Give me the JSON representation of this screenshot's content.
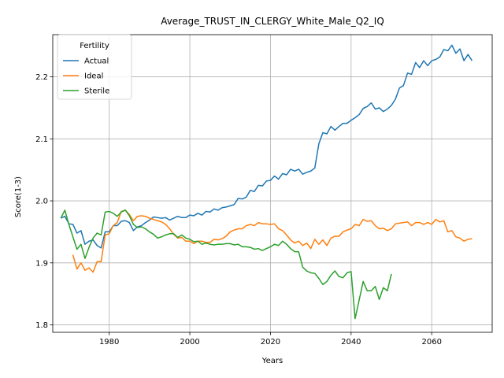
{
  "chart_data": {
    "type": "line",
    "title": "Average_TRUST_IN_CLERGY_White_Male_Q2_IQ",
    "xlabel": "Years",
    "ylabel": "Score(1-3)",
    "xlim": [
      1966,
      2075
    ],
    "ylim": [
      1.788,
      2.268
    ],
    "xticks": [
      1980,
      2000,
      2020,
      2040,
      2060
    ],
    "yticks": [
      1.8,
      1.9,
      2.0,
      2.1,
      2.2
    ],
    "grid": true,
    "legend": {
      "title": "Fertility",
      "placement": "upper-left"
    },
    "series": [
      {
        "name": "Actual",
        "color": "#1f77b4",
        "points": [
          [
            1968,
            1.972
          ],
          [
            1969,
            1.975
          ],
          [
            1970,
            1.963
          ],
          [
            1971,
            1.962
          ],
          [
            1972,
            1.948
          ],
          [
            1973,
            1.952
          ],
          [
            1974,
            1.93
          ],
          [
            1975,
            1.935
          ],
          [
            1976,
            1.937
          ],
          [
            1977,
            1.928
          ],
          [
            1978,
            1.924
          ],
          [
            1979,
            1.95
          ],
          [
            1980,
            1.95
          ],
          [
            1981,
            1.96
          ],
          [
            1982,
            1.96
          ],
          [
            1983,
            1.967
          ],
          [
            1984,
            1.968
          ],
          [
            1985,
            1.965
          ],
          [
            1986,
            1.952
          ],
          [
            1987,
            1.958
          ],
          [
            1988,
            1.96
          ],
          [
            1989,
            1.965
          ],
          [
            1990,
            1.969
          ],
          [
            1991,
            1.974
          ],
          [
            1992,
            1.973
          ],
          [
            1993,
            1.972
          ],
          [
            1994,
            1.973
          ],
          [
            1995,
            1.969
          ],
          [
            1996,
            1.972
          ],
          [
            1997,
            1.975
          ],
          [
            1998,
            1.973
          ],
          [
            1999,
            1.973
          ],
          [
            2000,
            1.977
          ],
          [
            2001,
            1.976
          ],
          [
            2002,
            1.98
          ],
          [
            2003,
            1.977
          ],
          [
            2004,
            1.983
          ],
          [
            2005,
            1.982
          ],
          [
            2006,
            1.987
          ],
          [
            2007,
            1.985
          ],
          [
            2008,
            1.989
          ],
          [
            2009,
            1.99
          ],
          [
            2010,
            1.992
          ],
          [
            2011,
            1.994
          ],
          [
            2012,
            2.004
          ],
          [
            2013,
            2.003
          ],
          [
            2014,
            2.006
          ],
          [
            2015,
            2.017
          ],
          [
            2016,
            2.015
          ],
          [
            2017,
            2.025
          ],
          [
            2018,
            2.024
          ],
          [
            2019,
            2.032
          ],
          [
            2020,
            2.033
          ],
          [
            2021,
            2.04
          ],
          [
            2022,
            2.035
          ],
          [
            2023,
            2.044
          ],
          [
            2024,
            2.042
          ],
          [
            2025,
            2.051
          ],
          [
            2026,
            2.048
          ],
          [
            2027,
            2.051
          ],
          [
            2028,
            2.043
          ],
          [
            2029,
            2.046
          ],
          [
            2030,
            2.048
          ],
          [
            2031,
            2.053
          ],
          [
            2032,
            2.092
          ],
          [
            2033,
            2.11
          ],
          [
            2034,
            2.108
          ],
          [
            2035,
            2.12
          ],
          [
            2036,
            2.114
          ],
          [
            2037,
            2.12
          ],
          [
            2038,
            2.125
          ],
          [
            2039,
            2.125
          ],
          [
            2040,
            2.13
          ],
          [
            2041,
            2.134
          ],
          [
            2042,
            2.139
          ],
          [
            2043,
            2.149
          ],
          [
            2044,
            2.152
          ],
          [
            2045,
            2.158
          ],
          [
            2046,
            2.148
          ],
          [
            2047,
            2.15
          ],
          [
            2048,
            2.144
          ],
          [
            2049,
            2.148
          ],
          [
            2050,
            2.154
          ],
          [
            2051,
            2.164
          ],
          [
            2052,
            2.182
          ],
          [
            2053,
            2.186
          ],
          [
            2054,
            2.206
          ],
          [
            2055,
            2.204
          ],
          [
            2056,
            2.223
          ],
          [
            2057,
            2.215
          ],
          [
            2058,
            2.226
          ],
          [
            2059,
            2.218
          ],
          [
            2060,
            2.226
          ],
          [
            2061,
            2.228
          ],
          [
            2062,
            2.232
          ],
          [
            2063,
            2.244
          ],
          [
            2064,
            2.242
          ],
          [
            2065,
            2.251
          ],
          [
            2066,
            2.238
          ],
          [
            2067,
            2.245
          ],
          [
            2068,
            2.226
          ],
          [
            2069,
            2.236
          ],
          [
            2070,
            2.226
          ]
        ]
      },
      {
        "name": "Ideal",
        "color": "#ff7f0e",
        "points": [
          [
            1971,
            1.913
          ],
          [
            1972,
            1.89
          ],
          [
            1973,
            1.9
          ],
          [
            1974,
            1.888
          ],
          [
            1975,
            1.892
          ],
          [
            1976,
            1.885
          ],
          [
            1977,
            1.902
          ],
          [
            1978,
            1.902
          ],
          [
            1979,
            1.945
          ],
          [
            1980,
            1.947
          ],
          [
            1981,
            1.96
          ],
          [
            1982,
            1.965
          ],
          [
            1983,
            1.983
          ],
          [
            1984,
            1.985
          ],
          [
            1985,
            1.978
          ],
          [
            1986,
            1.968
          ],
          [
            1987,
            1.975
          ],
          [
            1988,
            1.976
          ],
          [
            1989,
            1.975
          ],
          [
            1990,
            1.972
          ],
          [
            1991,
            1.97
          ],
          [
            1992,
            1.968
          ],
          [
            1993,
            1.966
          ],
          [
            1994,
            1.962
          ],
          [
            1995,
            1.955
          ],
          [
            1996,
            1.946
          ],
          [
            1997,
            1.94
          ],
          [
            1998,
            1.941
          ],
          [
            1999,
            1.935
          ],
          [
            2000,
            1.935
          ],
          [
            2001,
            1.931
          ],
          [
            2002,
            1.935
          ],
          [
            2003,
            1.935
          ],
          [
            2004,
            1.933
          ],
          [
            2005,
            1.933
          ],
          [
            2006,
            1.938
          ],
          [
            2007,
            1.937
          ],
          [
            2008,
            1.939
          ],
          [
            2009,
            1.943
          ],
          [
            2010,
            1.95
          ],
          [
            2011,
            1.953
          ],
          [
            2012,
            1.955
          ],
          [
            2013,
            1.955
          ],
          [
            2014,
            1.96
          ],
          [
            2015,
            1.962
          ],
          [
            2016,
            1.96
          ],
          [
            2017,
            1.965
          ],
          [
            2018,
            1.963
          ],
          [
            2019,
            1.963
          ],
          [
            2020,
            1.962
          ],
          [
            2021,
            1.963
          ],
          [
            2022,
            1.955
          ],
          [
            2023,
            1.952
          ],
          [
            2024,
            1.945
          ],
          [
            2025,
            1.937
          ],
          [
            2026,
            1.932
          ],
          [
            2027,
            1.935
          ],
          [
            2028,
            1.928
          ],
          [
            2029,
            1.932
          ],
          [
            2030,
            1.923
          ],
          [
            2031,
            1.938
          ],
          [
            2032,
            1.93
          ],
          [
            2033,
            1.937
          ],
          [
            2034,
            1.928
          ],
          [
            2035,
            1.94
          ],
          [
            2036,
            1.943
          ],
          [
            2037,
            1.943
          ],
          [
            2038,
            1.95
          ],
          [
            2039,
            1.953
          ],
          [
            2040,
            1.955
          ],
          [
            2041,
            1.962
          ],
          [
            2042,
            1.96
          ],
          [
            2043,
            1.97
          ],
          [
            2044,
            1.967
          ],
          [
            2045,
            1.968
          ],
          [
            2046,
            1.96
          ],
          [
            2047,
            1.955
          ],
          [
            2048,
            1.956
          ],
          [
            2049,
            1.952
          ],
          [
            2050,
            1.955
          ],
          [
            2051,
            1.963
          ],
          [
            2052,
            1.964
          ],
          [
            2053,
            1.965
          ],
          [
            2054,
            1.966
          ],
          [
            2055,
            1.96
          ],
          [
            2056,
            1.965
          ],
          [
            2057,
            1.965
          ],
          [
            2058,
            1.962
          ],
          [
            2059,
            1.965
          ],
          [
            2060,
            1.962
          ],
          [
            2061,
            1.97
          ],
          [
            2062,
            1.966
          ],
          [
            2063,
            1.968
          ],
          [
            2064,
            1.95
          ],
          [
            2065,
            1.952
          ],
          [
            2066,
            1.942
          ],
          [
            2067,
            1.94
          ],
          [
            2068,
            1.935
          ],
          [
            2069,
            1.938
          ],
          [
            2070,
            1.939
          ]
        ]
      },
      {
        "name": "Sterile",
        "color": "#2ca02c",
        "points": [
          [
            1968,
            1.972
          ],
          [
            1969,
            1.985
          ],
          [
            1970,
            1.962
          ],
          [
            1971,
            1.942
          ],
          [
            1972,
            1.922
          ],
          [
            1973,
            1.93
          ],
          [
            1974,
            1.907
          ],
          [
            1975,
            1.925
          ],
          [
            1976,
            1.94
          ],
          [
            1977,
            1.948
          ],
          [
            1978,
            1.945
          ],
          [
            1979,
            1.982
          ],
          [
            1980,
            1.983
          ],
          [
            1981,
            1.98
          ],
          [
            1982,
            1.975
          ],
          [
            1983,
            1.982
          ],
          [
            1984,
            1.985
          ],
          [
            1985,
            1.976
          ],
          [
            1986,
            1.962
          ],
          [
            1987,
            1.957
          ],
          [
            1988,
            1.958
          ],
          [
            1989,
            1.955
          ],
          [
            1990,
            1.95
          ],
          [
            1991,
            1.946
          ],
          [
            1992,
            1.94
          ],
          [
            1993,
            1.942
          ],
          [
            1994,
            1.945
          ],
          [
            1995,
            1.947
          ],
          [
            1996,
            1.947
          ],
          [
            1997,
            1.941
          ],
          [
            1998,
            1.945
          ],
          [
            1999,
            1.94
          ],
          [
            2000,
            1.938
          ],
          [
            2001,
            1.934
          ],
          [
            2002,
            1.935
          ],
          [
            2003,
            1.93
          ],
          [
            2004,
            1.932
          ],
          [
            2005,
            1.93
          ],
          [
            2006,
            1.929
          ],
          [
            2007,
            1.93
          ],
          [
            2008,
            1.93
          ],
          [
            2009,
            1.931
          ],
          [
            2010,
            1.931
          ],
          [
            2011,
            1.929
          ],
          [
            2012,
            1.93
          ],
          [
            2013,
            1.926
          ],
          [
            2014,
            1.926
          ],
          [
            2015,
            1.925
          ],
          [
            2016,
            1.922
          ],
          [
            2017,
            1.923
          ],
          [
            2018,
            1.92
          ],
          [
            2019,
            1.923
          ],
          [
            2020,
            1.926
          ],
          [
            2021,
            1.93
          ],
          [
            2022,
            1.928
          ],
          [
            2023,
            1.935
          ],
          [
            2024,
            1.93
          ],
          [
            2025,
            1.923
          ],
          [
            2026,
            1.918
          ],
          [
            2027,
            1.918
          ],
          [
            2028,
            1.893
          ],
          [
            2029,
            1.887
          ],
          [
            2030,
            1.884
          ],
          [
            2031,
            1.883
          ],
          [
            2032,
            1.875
          ],
          [
            2033,
            1.865
          ],
          [
            2034,
            1.87
          ],
          [
            2035,
            1.88
          ],
          [
            2036,
            1.887
          ],
          [
            2037,
            1.878
          ],
          [
            2038,
            1.876
          ],
          [
            2039,
            1.884
          ],
          [
            2040,
            1.886
          ],
          [
            2041,
            1.81
          ],
          [
            2042,
            1.84
          ],
          [
            2043,
            1.87
          ],
          [
            2044,
            1.855
          ],
          [
            2045,
            1.855
          ],
          [
            2046,
            1.862
          ],
          [
            2047,
            1.841
          ],
          [
            2048,
            1.86
          ],
          [
            2049,
            1.855
          ],
          [
            2050,
            1.882
          ]
        ]
      }
    ]
  }
}
